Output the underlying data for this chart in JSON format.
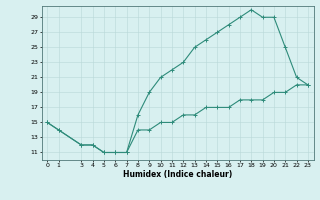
{
  "upper_x": [
    0,
    1,
    3,
    4,
    5,
    6,
    7,
    8,
    9,
    10,
    11,
    12,
    13,
    14,
    15,
    16,
    17,
    18,
    19,
    20,
    21,
    22,
    23
  ],
  "upper_y": [
    15,
    14,
    12,
    12,
    11,
    11,
    11,
    16,
    19,
    21,
    22,
    23,
    25,
    26,
    27,
    28,
    29,
    30,
    29,
    29,
    25,
    21,
    20
  ],
  "lower_x": [
    0,
    1,
    3,
    4,
    5,
    6,
    7,
    8,
    9,
    10,
    11,
    12,
    13,
    14,
    15,
    16,
    17,
    18,
    19,
    20,
    21,
    22,
    23
  ],
  "lower_y": [
    15,
    14,
    12,
    12,
    11,
    11,
    11,
    14,
    14,
    15,
    15,
    16,
    16,
    17,
    17,
    17,
    18,
    18,
    18,
    19,
    19,
    20,
    20
  ],
  "line_color": "#2e8b7a",
  "bg_color": "#d8f0f0",
  "grid_major_color": "#b8d8d8",
  "grid_minor_color": "#c8e8e8",
  "xlabel": "Humidex (Indice chaleur)",
  "xlim": [
    -0.5,
    23.5
  ],
  "ylim": [
    10.0,
    30.5
  ],
  "yticks": [
    11,
    13,
    15,
    17,
    19,
    21,
    23,
    25,
    27,
    29
  ],
  "xticks": [
    0,
    1,
    3,
    4,
    5,
    6,
    7,
    8,
    9,
    10,
    11,
    12,
    13,
    14,
    15,
    16,
    17,
    18,
    19,
    20,
    21,
    22,
    23
  ],
  "marker": "+",
  "markersize": 3,
  "linewidth": 0.8
}
